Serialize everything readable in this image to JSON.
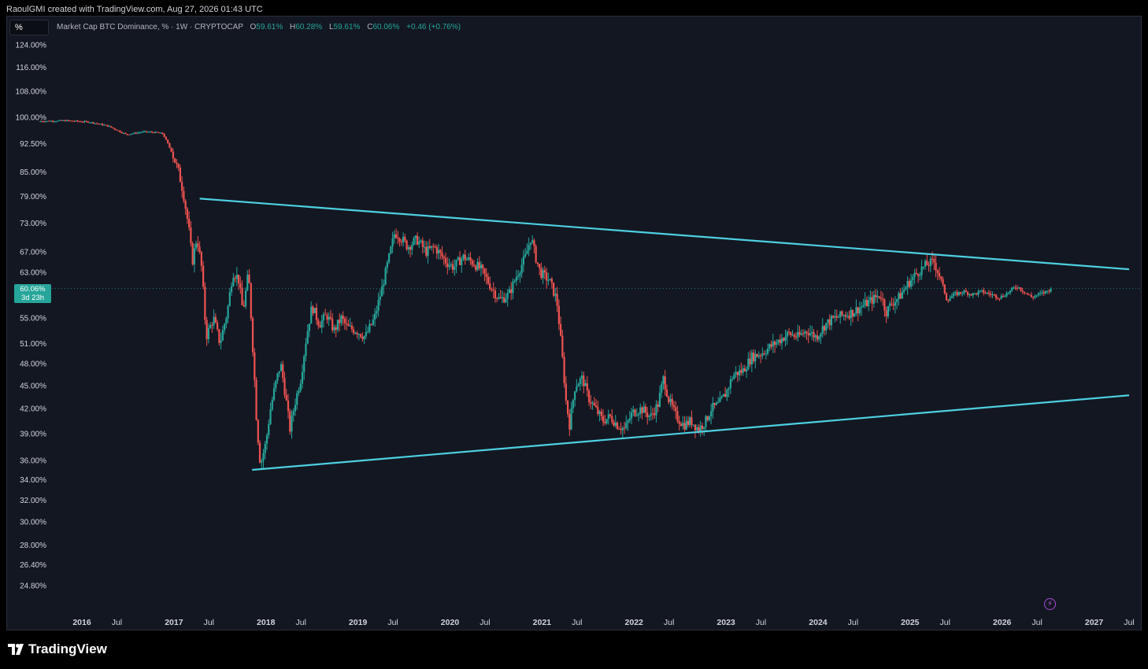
{
  "credit": "RaoulGMI created with TradingView.com, Aug 27, 2026 01:43 UTC",
  "symbol_box": "%",
  "legend": {
    "title": "Market Cap BTC Dominance, % · 1W · CRYPTOCAP",
    "o_label": "O",
    "o_value": "59.61%",
    "h_label": "H",
    "h_value": "60.28%",
    "l_label": "L",
    "l_value": "59.61%",
    "c_label": "C",
    "c_value": "60.06%",
    "change": "+0.46 (+0.76%)"
  },
  "price_tag": {
    "value": "60.06%",
    "countdown": "3d 23h"
  },
  "footer": {
    "brand": "TradingView"
  },
  "icons": {
    "logo": "tradingview-logo-icon",
    "bolt": "lightning-icon"
  },
  "colors": {
    "background": "#131722",
    "up": "#26a69a",
    "down": "#ef5350",
    "trendline": "#4dd0e1",
    "axis_text": "#d1d4dc"
  },
  "chart_data": {
    "type": "candlestick",
    "title": "Market Cap BTC Dominance, % · 1W · CRYPTOCAP",
    "y_scale": "log",
    "y_ticks": [
      "124.00%",
      "116.00%",
      "108.00%",
      "100.00%",
      "92.50%",
      "85.00%",
      "79.00%",
      "73.00%",
      "67.00%",
      "63.00%",
      "55.00%",
      "51.00%",
      "48.00%",
      "45.00%",
      "42.00%",
      "39.00%",
      "36.00%",
      "34.00%",
      "32.00%",
      "30.00%",
      "28.00%",
      "26.40%",
      "24.80%"
    ],
    "y_tick_values": [
      124,
      116,
      108,
      100,
      92.5,
      85,
      79,
      73,
      67,
      63,
      55,
      51,
      48,
      45,
      42,
      39,
      36,
      34,
      32,
      30,
      28,
      26.4,
      24.8
    ],
    "x_ticks": [
      "2016",
      "Jul",
      "2017",
      "Jul",
      "2018",
      "Jul",
      "2019",
      "Jul",
      "2020",
      "Jul",
      "2021",
      "Jul",
      "2022",
      "Jul",
      "2023",
      "Jul",
      "2024",
      "Jul",
      "2025",
      "Jul",
      "2026",
      "Jul",
      "2027",
      "Jul"
    ],
    "x_tick_values": [
      2016.0,
      2016.5,
      2017.0,
      2017.5,
      2018.0,
      2018.5,
      2019.0,
      2019.5,
      2020.0,
      2020.5,
      2021.0,
      2021.5,
      2022.0,
      2022.5,
      2023.0,
      2023.5,
      2024.0,
      2024.5,
      2025.0,
      2025.5,
      2026.0,
      2026.5,
      2027.0,
      2027.5
    ],
    "x_range": [
      2015.65,
      2027.5
    ],
    "last_value": 60.06,
    "series": [
      {
        "points": [
          [
            2015.65,
            98.8
          ],
          [
            2015.95,
            99.0
          ],
          [
            2016.2,
            98.6
          ],
          [
            2016.4,
            97.5
          ],
          [
            2016.6,
            95.0
          ],
          [
            2016.8,
            95.8
          ],
          [
            2016.95,
            95.5
          ],
          [
            2017.0,
            95.2
          ],
          [
            2017.1,
            90.0
          ],
          [
            2017.17,
            85.0
          ],
          [
            2017.22,
            80.0
          ],
          [
            2017.28,
            72.0
          ],
          [
            2017.32,
            65.0
          ],
          [
            2017.37,
            70.0
          ],
          [
            2017.42,
            64.0
          ],
          [
            2017.47,
            52.0
          ],
          [
            2017.55,
            55.0
          ],
          [
            2017.62,
            51.0
          ],
          [
            2017.7,
            56.0
          ],
          [
            2017.76,
            63.0
          ],
          [
            2017.82,
            62.0
          ],
          [
            2017.87,
            56.0
          ],
          [
            2017.93,
            63.0
          ],
          [
            2017.97,
            52.0
          ],
          [
            2018.02,
            40.0
          ],
          [
            2018.06,
            35.5
          ],
          [
            2018.12,
            38.0
          ],
          [
            2018.17,
            42.0
          ],
          [
            2018.22,
            45.0
          ],
          [
            2018.28,
            48.0
          ],
          [
            2018.34,
            43.0
          ],
          [
            2018.38,
            39.5
          ],
          [
            2018.44,
            43.0
          ],
          [
            2018.5,
            46.0
          ],
          [
            2018.56,
            52.0
          ],
          [
            2018.62,
            57.0
          ],
          [
            2018.7,
            54.0
          ],
          [
            2018.78,
            55.5
          ],
          [
            2018.86,
            53.0
          ],
          [
            2018.94,
            55.0
          ],
          [
            2019.0,
            53.5
          ],
          [
            2019.1,
            53.0
          ],
          [
            2019.2,
            52.0
          ],
          [
            2019.3,
            55.0
          ],
          [
            2019.38,
            60.0
          ],
          [
            2019.46,
            66.0
          ],
          [
            2019.52,
            71.0
          ],
          [
            2019.58,
            70.0
          ],
          [
            2019.66,
            68.0
          ],
          [
            2019.76,
            69.5
          ],
          [
            2019.86,
            67.0
          ],
          [
            2019.95,
            68.0
          ],
          [
            2020.08,
            65.0
          ],
          [
            2020.16,
            64.0
          ],
          [
            2020.26,
            66.0
          ],
          [
            2020.36,
            65.0
          ],
          [
            2020.46,
            63.5
          ],
          [
            2020.56,
            60.5
          ],
          [
            2020.66,
            58.0
          ],
          [
            2020.76,
            59.0
          ],
          [
            2020.86,
            63.0
          ],
          [
            2020.94,
            66.0
          ],
          [
            2021.0,
            70.0
          ],
          [
            2021.05,
            66.0
          ],
          [
            2021.1,
            63.0
          ],
          [
            2021.2,
            61.5
          ],
          [
            2021.28,
            58.0
          ],
          [
            2021.34,
            49.0
          ],
          [
            2021.38,
            43.0
          ],
          [
            2021.42,
            40.0
          ],
          [
            2021.48,
            45.0
          ],
          [
            2021.56,
            46.0
          ],
          [
            2021.62,
            43.5
          ],
          [
            2021.7,
            42.0
          ],
          [
            2021.78,
            40.5
          ],
          [
            2021.86,
            41.0
          ],
          [
            2021.94,
            40.0
          ],
          [
            2022.02,
            39.5
          ],
          [
            2022.1,
            41.5
          ],
          [
            2022.2,
            42.0
          ],
          [
            2022.3,
            41.0
          ],
          [
            2022.38,
            42.5
          ],
          [
            2022.44,
            46.0
          ],
          [
            2022.5,
            43.0
          ],
          [
            2022.58,
            41.0
          ],
          [
            2022.66,
            40.0
          ],
          [
            2022.74,
            40.5
          ],
          [
            2022.82,
            39.5
          ],
          [
            2022.9,
            40.5
          ],
          [
            2022.96,
            42.0
          ],
          [
            2023.04,
            42.5
          ],
          [
            2023.12,
            44.0
          ],
          [
            2023.2,
            46.5
          ],
          [
            2023.3,
            47.0
          ],
          [
            2023.4,
            49.0
          ],
          [
            2023.5,
            49.5
          ],
          [
            2023.6,
            50.5
          ],
          [
            2023.7,
            51.5
          ],
          [
            2023.8,
            52.5
          ],
          [
            2023.9,
            52.0
          ],
          [
            2024.0,
            53.0
          ],
          [
            2024.1,
            52.0
          ],
          [
            2024.2,
            54.0
          ],
          [
            2024.3,
            55.0
          ],
          [
            2024.4,
            55.5
          ],
          [
            2024.5,
            56.0
          ],
          [
            2024.6,
            57.0
          ],
          [
            2024.7,
            58.0
          ],
          [
            2024.8,
            59.0
          ],
          [
            2024.86,
            56.0
          ],
          [
            2024.92,
            57.5
          ],
          [
            2025.0,
            58.5
          ],
          [
            2025.1,
            61.0
          ],
          [
            2025.2,
            63.0
          ],
          [
            2025.3,
            64.5
          ],
          [
            2025.38,
            65.0
          ],
          [
            2025.45,
            62.0
          ],
          [
            2025.52,
            58.0
          ],
          [
            2025.6,
            59.0
          ],
          [
            2025.7,
            59.5
          ],
          [
            2025.8,
            59.0
          ],
          [
            2025.9,
            59.5
          ],
          [
            2026.0,
            59.0
          ],
          [
            2026.1,
            58.5
          ],
          [
            2026.2,
            59.5
          ],
          [
            2026.28,
            60.5
          ],
          [
            2026.36,
            59.5
          ],
          [
            2026.44,
            58.5
          ],
          [
            2026.52,
            59.0
          ],
          [
            2026.6,
            59.5
          ],
          [
            2026.65,
            60.06
          ]
        ]
      }
    ],
    "trendlines": [
      {
        "from": [
          2017.4,
          78.5
        ],
        "to": [
          2027.5,
          63.6
        ]
      },
      {
        "from": [
          2017.97,
          35.0
        ],
        "to": [
          2027.5,
          43.7
        ]
      }
    ]
  }
}
